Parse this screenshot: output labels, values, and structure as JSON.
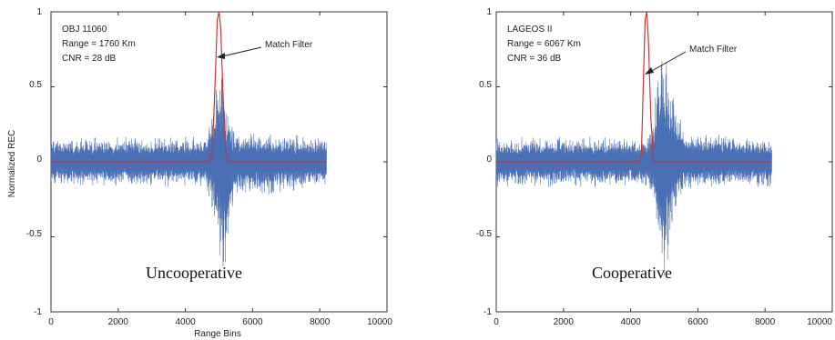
{
  "chart_data": [
    {
      "type": "line",
      "title": "",
      "xlabel": "Range Bins",
      "ylabel": "Normalized REC",
      "xlim": [
        0,
        10000
      ],
      "ylim": [
        -1,
        1
      ],
      "xticks": [
        0,
        2000,
        4000,
        6000,
        8000,
        10000
      ],
      "yticks": [
        -1,
        -0.5,
        0,
        0.5,
        1
      ],
      "tick_labels_x": [
        "0",
        "2000",
        "4000",
        "6000",
        "8000",
        "10000"
      ],
      "tick_labels_y": [
        "-1",
        "-0.5",
        "0",
        "0.5",
        "1"
      ],
      "grid": false,
      "info_lines": [
        "OBJ 11060",
        "Range = 1760 Km",
        "CNR = 28 dB"
      ],
      "annotation": "Match Filter",
      "caption": "Uncooperative",
      "series": [
        {
          "color": "#4a6fb5",
          "kind": "noise",
          "x_range": [
            0,
            8200
          ],
          "noise_amplitude": 0.17,
          "x": [
            0,
            4600,
            4850,
            5000,
            5100,
            5200,
            5300,
            5450,
            8200
          ],
          "envelope_max": [
            0.17,
            0.17,
            0.4,
            0.75,
            0.6,
            0.45,
            0.3,
            0.2,
            0.17
          ],
          "envelope_min": [
            -0.17,
            -0.17,
            -0.35,
            -0.6,
            -0.75,
            -0.88,
            -0.5,
            -0.25,
            -0.17
          ]
        },
        {
          "color": "#c03a3a",
          "kind": "pulse",
          "x": [
            0,
            4700,
            4800,
            4880,
            4950,
            5000,
            5050,
            5120,
            5200,
            5300,
            8200
          ],
          "y": [
            0,
            0,
            0.05,
            0.5,
            0.95,
            1.0,
            0.9,
            0.45,
            0.05,
            0,
            0
          ]
        }
      ]
    },
    {
      "type": "line",
      "title": "",
      "xlabel": "",
      "ylabel": "",
      "xlim": [
        0,
        10000
      ],
      "ylim": [
        -1,
        1
      ],
      "xticks": [
        0,
        2000,
        4000,
        6000,
        8000,
        10000
      ],
      "yticks": [
        -1,
        -0.5,
        0,
        0.5,
        1
      ],
      "tick_labels_x": [
        "0",
        "2000",
        "4000",
        "6000",
        "8000",
        "10000"
      ],
      "tick_labels_y": [
        "-1",
        "-0.5",
        "0",
        "0.5",
        "1"
      ],
      "grid": false,
      "info_lines": [
        "LAGEOS II",
        "Range = 6067 Km",
        "CNR = 36 dB"
      ],
      "annotation": "Match Filter",
      "caption": "Cooperative",
      "series": [
        {
          "color": "#4a6fb5",
          "kind": "noise",
          "x_range": [
            0,
            8200
          ],
          "noise_amplitude": 0.17,
          "x": [
            0,
            4500,
            4700,
            4850,
            5000,
            5150,
            5300,
            5500,
            5700,
            8200
          ],
          "envelope_max": [
            0.17,
            0.17,
            0.3,
            0.95,
            0.75,
            0.6,
            0.45,
            0.3,
            0.2,
            0.17
          ],
          "envelope_min": [
            -0.17,
            -0.17,
            -0.3,
            -0.75,
            -0.88,
            -0.6,
            -0.4,
            -0.25,
            -0.18,
            -0.17
          ]
        },
        {
          "color": "#c03a3a",
          "kind": "pulse",
          "x": [
            0,
            4250,
            4320,
            4380,
            4430,
            4480,
            4530,
            4600,
            4680,
            8200
          ],
          "y": [
            0,
            0,
            0.05,
            0.55,
            0.95,
            1.0,
            0.8,
            0.3,
            0,
            0
          ]
        }
      ]
    }
  ]
}
